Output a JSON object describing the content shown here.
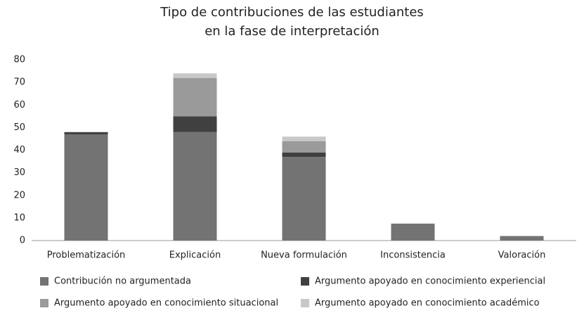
{
  "chart_data": {
    "type": "stacked-bar",
    "title": "Tipo de contribuciones de las estudiantes\nen la fase de interpretación",
    "categories": [
      "Problematización",
      "Explicación",
      "Nueva formulación",
      "Inconsistencia",
      "Valoración"
    ],
    "series": [
      {
        "name": "Contribución no argumentada",
        "color": "#737373",
        "values": [
          47,
          48,
          37,
          7.5,
          2
        ]
      },
      {
        "name": "Argumento apoyado en conocimiento experiencial",
        "color": "#404040",
        "values": [
          1,
          7,
          2,
          0,
          0
        ]
      },
      {
        "name": "Argumento apoyado en conocimiento situacional",
        "color": "#9a9a9a",
        "values": [
          0,
          17,
          5,
          0,
          0
        ]
      },
      {
        "name": "Argumento apoyado en conocimiento académico",
        "color": "#c8c8c8",
        "values": [
          0,
          2,
          2,
          0,
          0
        ]
      }
    ],
    "ylim": [
      0,
      80
    ],
    "yticks": [
      0,
      10,
      20,
      30,
      40,
      50,
      60,
      70,
      80
    ],
    "grid": false,
    "legend": "bottom"
  }
}
